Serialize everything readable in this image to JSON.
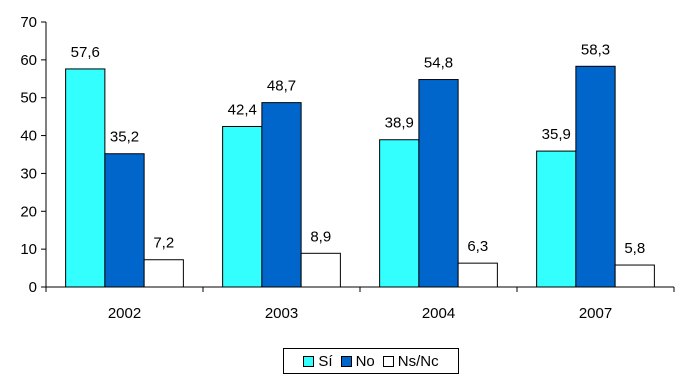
{
  "chart_data": {
    "type": "bar",
    "title": "",
    "xlabel": "",
    "ylabel": "",
    "categories": [
      "2002",
      "2003",
      "2004",
      "2007"
    ],
    "series": [
      {
        "name": "Sí",
        "values": [
          57.6,
          42.4,
          38.9,
          35.9
        ],
        "labels": [
          "57,6",
          "42,4",
          "38,9",
          "35,9"
        ],
        "color": "#33FFFF"
      },
      {
        "name": "No",
        "values": [
          35.2,
          48.7,
          54.8,
          58.3
        ],
        "labels": [
          "35,2",
          "48,7",
          "54,8",
          "58,3"
        ],
        "color": "#0066CC"
      },
      {
        "name": "Ns/Nc",
        "values": [
          7.2,
          8.9,
          6.3,
          5.8
        ],
        "labels": [
          "7,2",
          "8,9",
          "6,3",
          "5,8"
        ],
        "color": "#FFFFFF"
      }
    ],
    "ylim": [
      0,
      70
    ],
    "yticks": [
      "0",
      "10",
      "20",
      "30",
      "40",
      "50",
      "60",
      "70"
    ],
    "grid": false,
    "legend": "bottom"
  }
}
